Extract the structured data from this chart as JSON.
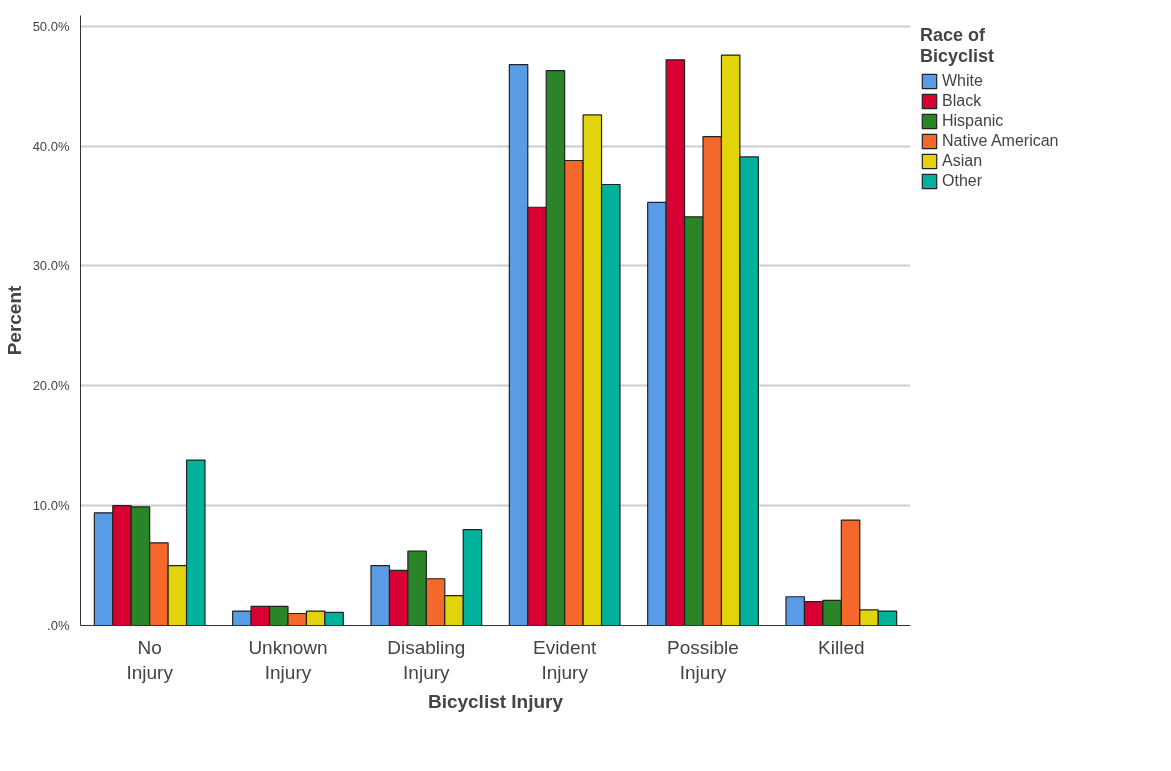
{
  "chart_data": {
    "type": "bar",
    "xlabel": "Bicyclist Injury",
    "ylabel": "Percent",
    "legend_title": "Race of Bicyclist",
    "categories": [
      "No Injury",
      "Unknown Injury",
      "Disabling Injury",
      "Evident Injury",
      "Possible Injury",
      "Killed"
    ],
    "series": [
      {
        "name": "White",
        "color": "#5a9be6",
        "values": [
          9.4,
          1.2,
          5.0,
          46.8,
          35.3,
          2.4
        ]
      },
      {
        "name": "Black",
        "color": "#d80032",
        "values": [
          10.0,
          1.6,
          4.6,
          34.9,
          47.2,
          2.0
        ]
      },
      {
        "name": "Hispanic",
        "color": "#2a8428",
        "values": [
          9.9,
          1.6,
          6.2,
          46.3,
          34.1,
          2.1
        ]
      },
      {
        "name": "Native American",
        "color": "#f4692b",
        "values": [
          6.9,
          1.0,
          3.9,
          38.8,
          40.8,
          8.8
        ]
      },
      {
        "name": "Asian",
        "color": "#e2d40c",
        "values": [
          5.0,
          1.2,
          2.5,
          42.6,
          47.6,
          1.3
        ]
      },
      {
        "name": "Other",
        "color": "#00b29c",
        "values": [
          13.8,
          1.1,
          8.0,
          36.8,
          39.1,
          1.2
        ]
      }
    ],
    "ylim": [
      0,
      50.9
    ],
    "yticks": [
      {
        "value": 0,
        "label": ".0%"
      },
      {
        "value": 10,
        "label": "10.0%"
      },
      {
        "value": 20,
        "label": "20.0%"
      },
      {
        "value": 30,
        "label": "30.0%"
      },
      {
        "value": 40,
        "label": "40.0%"
      },
      {
        "value": 50,
        "label": "50.0%"
      }
    ],
    "grid": "y",
    "legend": "top right"
  }
}
